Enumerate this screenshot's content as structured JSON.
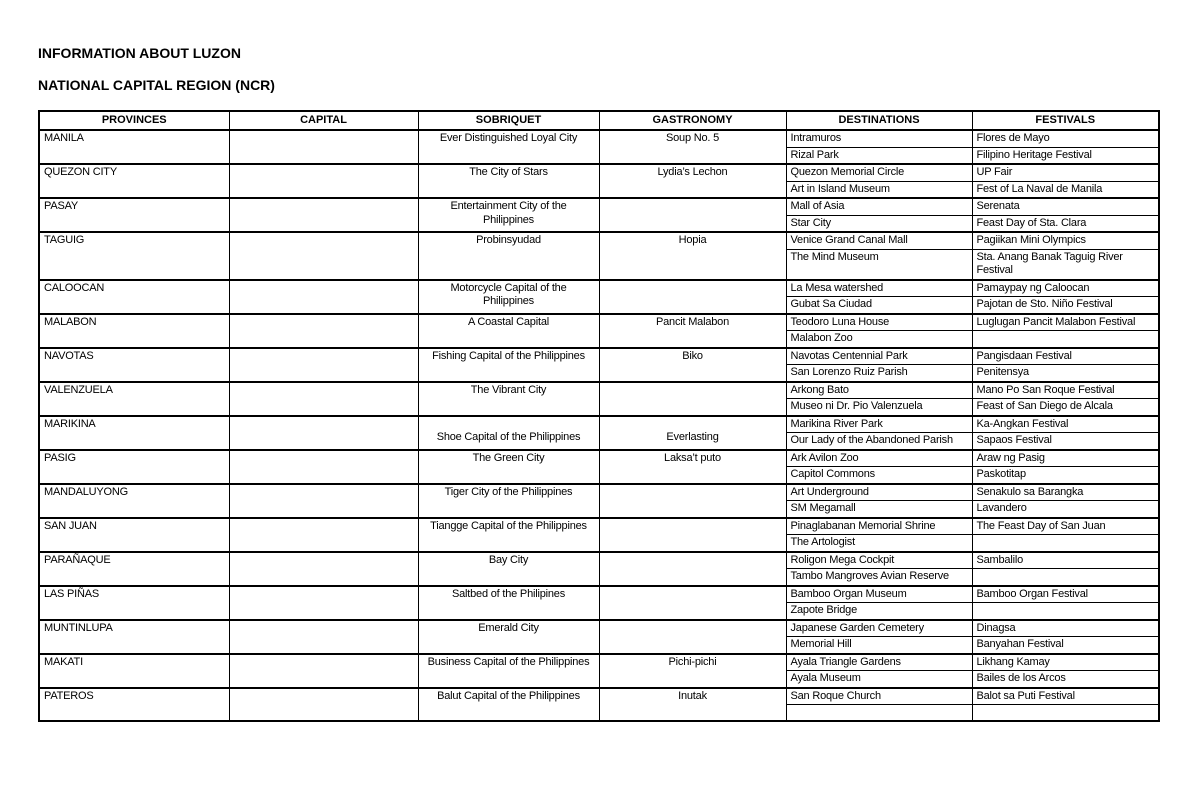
{
  "document": {
    "title": "INFORMATION ABOUT LUZON",
    "subtitle": "NATIONAL CAPITAL REGION (NCR)"
  },
  "table": {
    "headers": [
      "PROVINCES",
      "CAPITAL",
      "SOBRIQUET",
      "GASTRONOMY",
      "DESTINATIONS",
      "FESTIVALS"
    ],
    "rows": [
      {
        "province": "MANILA",
        "capital": "",
        "sobriquet": "Ever Distinguished Loyal City",
        "gastronomy": "Soup No. 5",
        "entries": [
          {
            "destination": "Intramuros",
            "festival": "Flores de Mayo"
          },
          {
            "destination": "Rizal Park",
            "festival": "Filipino Heritage Festival"
          }
        ]
      },
      {
        "province": "QUEZON CITY",
        "capital": "",
        "sobriquet": "The City of Stars",
        "gastronomy": "Lydia’s Lechon",
        "entries": [
          {
            "destination": "Quezon Memorial Circle",
            "festival": "UP Fair"
          },
          {
            "destination": "Art in Island Museum",
            "festival": "Fest of La Naval de Manila"
          }
        ]
      },
      {
        "province": "PASAY",
        "capital": "",
        "sobriquet": "Entertainment City of the\nPhilippines",
        "gastronomy": "",
        "entries": [
          {
            "destination": "Mall of Asia",
            "festival": "Serenata"
          },
          {
            "destination": "Star City",
            "festival": "Feast Day of Sta. Clara"
          }
        ]
      },
      {
        "province": "TAGUIG",
        "capital": "",
        "sobriquet": "Probinsyudad",
        "gastronomy": "Hopia",
        "entries": [
          {
            "destination": "Venice Grand Canal Mall",
            "festival": "Pagiikan Mini Olympics"
          },
          {
            "destination": "The Mind Museum",
            "festival": "Sta. Anang Banak Taguig River\nFestival"
          }
        ]
      },
      {
        "province": "CALOOCAN",
        "capital": "",
        "sobriquet": "Motorcycle Capital of the\nPhilippines",
        "gastronomy": "",
        "entries": [
          {
            "destination": "La Mesa watershed",
            "festival": "Pamaypay ng Caloocan"
          },
          {
            "destination": "Gubat Sa Ciudad",
            "festival": "Pajotan de Sto. Niño Festival"
          }
        ]
      },
      {
        "province": "MALABON",
        "capital": "",
        "sobriquet": "A Coastal Capital",
        "gastronomy": "Pancit Malabon",
        "entries": [
          {
            "destination": "Teodoro Luna House",
            "festival": "Luglugan Pancit Malabon Festival"
          },
          {
            "destination": "Malabon Zoo",
            "festival": ""
          }
        ]
      },
      {
        "province": "NAVOTAS",
        "capital": "",
        "sobriquet": "Fishing Capital of the Philippines",
        "gastronomy": "Biko",
        "entries": [
          {
            "destination": "Navotas Centennial Park",
            "festival": "Pangisdaan Festival"
          },
          {
            "destination": "San Lorenzo Ruiz Parish",
            "festival": "Penitensya"
          }
        ]
      },
      {
        "province": "VALENZUELA",
        "capital": "",
        "sobriquet": "The Vibrant City",
        "gastronomy": "",
        "entries": [
          {
            "destination": "Arkong Bato",
            "festival": "Mano Po San Roque Festival"
          },
          {
            "destination": "Museo ni Dr. Pio Valenzuela",
            "festival": "Feast of San Diego de Alcala"
          }
        ]
      },
      {
        "province": "MARIKINA",
        "capital": "",
        "sobriquet": "\nShoe Capital of the Philippines",
        "gastronomy": "\nEverlasting",
        "entries": [
          {
            "destination": "Marikina River Park",
            "festival": "Ka-Angkan Festival"
          },
          {
            "destination": "Our Lady of the Abandoned Parish",
            "festival": "Sapaos Festival"
          }
        ]
      },
      {
        "province": "PASIG",
        "capital": "",
        "sobriquet": "The Green City",
        "gastronomy": "Laksa’t puto",
        "entries": [
          {
            "destination": "Ark Avilon Zoo",
            "festival": "Araw ng Pasig"
          },
          {
            "destination": "Capitol Commons",
            "festival": "Paskotitap"
          }
        ]
      },
      {
        "province": "MANDALUYONG",
        "capital": "",
        "sobriquet": "Tiger City of the Philippines",
        "gastronomy": "",
        "entries": [
          {
            "destination": "Art Underground",
            "festival": "Senakulo sa Barangka"
          },
          {
            "destination": "SM Megamall",
            "festival": "Lavandero"
          }
        ]
      },
      {
        "province": "SAN JUAN",
        "capital": "",
        "sobriquet": "Tiangge Capital of the Philippines",
        "gastronomy": "",
        "entries": [
          {
            "destination": "Pinaglabanan Memorial Shrine",
            "festival": "The Feast Day of San Juan"
          },
          {
            "destination": "The Artologist",
            "festival": ""
          }
        ]
      },
      {
        "province": "PARAÑAQUE",
        "capital": "",
        "sobriquet": "Bay City",
        "gastronomy": "",
        "entries": [
          {
            "destination": "Roligon Mega Cockpit",
            "festival": "Sambalilo"
          },
          {
            "destination": "Tambo Mangroves Avian Reserve",
            "festival": ""
          }
        ]
      },
      {
        "province": "LAS PIÑAS",
        "capital": "",
        "sobriquet": "Saltbed of the Philipines",
        "gastronomy": "",
        "entries": [
          {
            "destination": "Bamboo Organ Museum",
            "festival": "Bamboo Organ Festival"
          },
          {
            "destination": "Zapote Bridge",
            "festival": ""
          }
        ]
      },
      {
        "province": "MUNTINLUPA",
        "capital": "",
        "sobriquet": "Emerald City",
        "gastronomy": "",
        "entries": [
          {
            "destination": "Japanese Garden Cemetery",
            "festival": "Dinagsa"
          },
          {
            "destination": "Memorial Hill",
            "festival": "Banyahan Festival"
          }
        ]
      },
      {
        "province": "MAKATI",
        "capital": "",
        "sobriquet": "Business Capital of the Philippines",
        "gastronomy": "Pichi-pichi",
        "entries": [
          {
            "destination": "Ayala Triangle Gardens",
            "festival": "Likhang Kamay"
          },
          {
            "destination": "Ayala Museum",
            "festival": "Bailes de los Arcos"
          }
        ]
      },
      {
        "province": "PATEROS",
        "capital": "",
        "sobriquet": "Balut Capital of the Philippines",
        "gastronomy": "Inutak",
        "entries": [
          {
            "destination": "San Roque Church",
            "festival": "Balot sa Puti Festival"
          },
          {
            "destination": "",
            "festival": ""
          }
        ]
      }
    ]
  }
}
